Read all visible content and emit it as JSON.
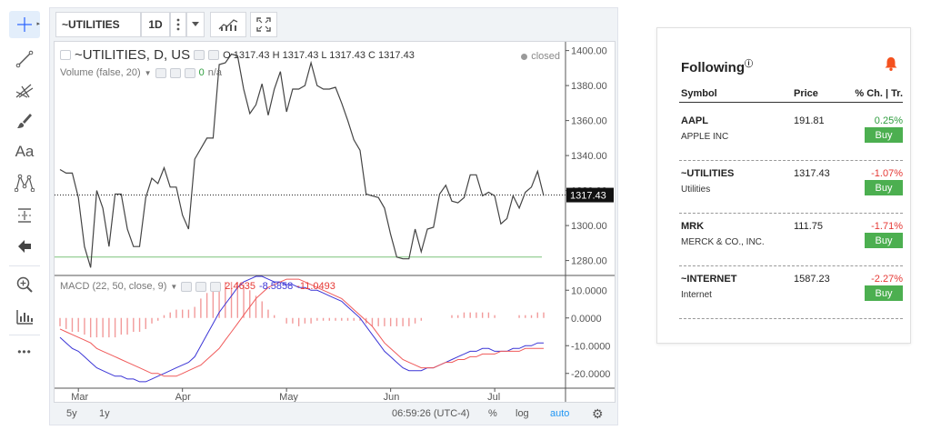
{
  "toolbar": {
    "tools": [
      {
        "icon": "crosshair-icon",
        "active": true
      },
      {
        "icon": "trend-line-icon"
      },
      {
        "icon": "pitchfork-icon"
      },
      {
        "icon": "brush-icon"
      },
      {
        "icon": "text-icon",
        "label": "Aa"
      },
      {
        "icon": "pattern-icon"
      },
      {
        "icon": "measure-icon"
      },
      {
        "icon": "arrow-left-icon"
      },
      {
        "icon": "zoom-in-icon"
      },
      {
        "icon": "indicator-icon"
      },
      {
        "icon": "more-icon",
        "label": "•••"
      }
    ]
  },
  "chart": {
    "symbol": "~UTILITIES",
    "interval": "1D",
    "title": "~UTILITIES, D, US",
    "ohlc": {
      "o_label": "O",
      "o": "1317.43",
      "h_label": "H",
      "h": "1317.43",
      "l_label": "L",
      "l": "1317.43",
      "c_label": "C",
      "c": "1317.43"
    },
    "status": "closed",
    "volume_label": "Volume (false, 20)",
    "volume_value": "0",
    "volume_na": "n/a",
    "macd_label": "MACD (22, 50, close, 9)",
    "macd_values": {
      "hist": "2.4635",
      "macd": "-8.5858",
      "signal": "-11.0493"
    },
    "current_price_label": "1317.43",
    "bottom": {
      "range_5y": "5y",
      "range_1y": "1y",
      "time": "06:59:26 (UTC-4)",
      "percent": "%",
      "log": "log",
      "auto": "auto"
    }
  },
  "chart_data": [
    {
      "type": "line",
      "title": "~UTILITIES, D, US",
      "y_ticks": [
        "1400.00",
        "1380.00",
        "1360.00",
        "1340.00",
        "1320.00",
        "1300.00",
        "1280.00"
      ],
      "ylim": [
        1272,
        1405
      ],
      "x_ticks": [
        "Mar",
        "Apr",
        "May",
        "Jun",
        "Jul"
      ],
      "x_tick_index": [
        3,
        20,
        37,
        54,
        71
      ],
      "reference_line": 1282,
      "last_value": 1317.43,
      "series": [
        {
          "values": [
            1332,
            1330,
            1330,
            1316,
            1288,
            1276,
            1320,
            1310,
            1288,
            1318,
            1318,
            1298,
            1288,
            1288,
            1316,
            1327,
            1324,
            1333,
            1322,
            1322,
            1306,
            1298,
            1338,
            1344,
            1350,
            1350,
            1392,
            1393,
            1398,
            1397,
            1378,
            1364,
            1369,
            1381,
            1363,
            1378,
            1388,
            1365,
            1378,
            1378,
            1380,
            1393,
            1380,
            1378,
            1378,
            1379,
            1370,
            1360,
            1349,
            1343,
            1318,
            1317,
            1316,
            1310,
            1295,
            1282,
            1281,
            1281,
            1298,
            1285,
            1298,
            1299,
            1318,
            1323,
            1314,
            1313,
            1316,
            1329,
            1329,
            1317,
            1319,
            1317,
            1301,
            1304,
            1317,
            1310,
            1319,
            1322,
            1331,
            1317
          ]
        }
      ]
    },
    {
      "type": "bar",
      "title": "MACD (22, 50, close, 9)",
      "y_ticks": [
        "10.0000",
        "0.0000",
        "-10.0000",
        "-20.0000"
      ],
      "ylim": [
        -25,
        15
      ],
      "series": [
        {
          "name": "MACD",
          "values": [
            -7,
            -9,
            -11,
            -12,
            -14,
            -16,
            -18,
            -19,
            -20,
            -21,
            -21,
            -22,
            -22,
            -23,
            -23,
            -22,
            -21,
            -20,
            -19,
            -18,
            -17,
            -16,
            -14,
            -10,
            -6,
            -2,
            2,
            5,
            8,
            11,
            13,
            14,
            15,
            15,
            14,
            13,
            13,
            12,
            12,
            11,
            11,
            10,
            10,
            9,
            8,
            7,
            6,
            4,
            2,
            0,
            -3,
            -6,
            -9,
            -12,
            -14,
            -16,
            -18,
            -19,
            -19,
            -19,
            -18,
            -18,
            -17,
            -16,
            -15,
            -14,
            -13,
            -12,
            -12,
            -11,
            -11,
            -12,
            -12,
            -12,
            -11,
            -11,
            -10,
            -10,
            -9,
            -9
          ]
        },
        {
          "name": "Signal",
          "values": [
            -4,
            -5,
            -6,
            -7,
            -8,
            -9,
            -11,
            -12,
            -13,
            -14,
            -15,
            -16,
            -17,
            -18,
            -19,
            -20,
            -20,
            -21,
            -21,
            -21,
            -20,
            -19,
            -18,
            -17,
            -15,
            -13,
            -11,
            -8,
            -5,
            -2,
            1,
            4,
            7,
            9,
            11,
            12,
            13,
            14,
            14,
            14,
            13,
            12,
            11,
            10,
            9,
            8,
            7,
            5,
            3,
            1,
            -1,
            -3,
            -6,
            -9,
            -11,
            -13,
            -15,
            -16,
            -17,
            -18,
            -18,
            -18,
            -17,
            -16,
            -16,
            -15,
            -15,
            -14,
            -14,
            -13,
            -13,
            -13,
            -12,
            -12,
            -12,
            -12,
            -11,
            -11,
            -11,
            -11
          ]
        },
        {
          "name": "Histogram",
          "values": [
            -3,
            -4,
            -5,
            -5,
            -6,
            -7,
            -7,
            -7,
            -7,
            -7,
            -6,
            -6,
            -5,
            -5,
            -4,
            -2,
            -1,
            1,
            2,
            3,
            3,
            3,
            4,
            7,
            9,
            11,
            13,
            13,
            13,
            13,
            12,
            10,
            8,
            6,
            3,
            1,
            0,
            -2,
            -2,
            -3,
            -2,
            -2,
            -1,
            -1,
            -1,
            -1,
            -1,
            -1,
            -1,
            -1,
            -2,
            -3,
            -3,
            -3,
            -3,
            -3,
            -3,
            -3,
            -2,
            -1,
            0,
            0,
            0,
            0,
            1,
            1,
            2,
            2,
            2,
            2,
            2,
            1,
            0,
            0,
            0,
            1,
            1,
            1,
            2,
            2
          ]
        }
      ]
    }
  ],
  "following": {
    "title": "Following",
    "info_icon": "info-icon",
    "bell_icon": "bell-icon",
    "headers": {
      "symbol": "Symbol",
      "price": "Price",
      "change": "% Ch. | Tr."
    },
    "colors": {
      "up": "#2e9d3e",
      "down": "#e53935",
      "buy": "#4caf50"
    },
    "rows": [
      {
        "symbol": "AAPL",
        "name": "APPLE INC",
        "price": "191.81",
        "change": "0.25%",
        "direction": "up",
        "buy": "Buy"
      },
      {
        "symbol": "~UTILITIES",
        "name": "Utilities",
        "price": "1317.43",
        "change": "-1.07%",
        "direction": "down",
        "buy": "Buy"
      },
      {
        "symbol": "MRK",
        "name": "MERCK & CO., INC.",
        "price": "111.75",
        "change": "-1.71%",
        "direction": "down",
        "buy": "Buy"
      },
      {
        "symbol": "~INTERNET",
        "name": "Internet",
        "price": "1587.23",
        "change": "-2.27%",
        "direction": "down",
        "buy": "Buy"
      }
    ]
  }
}
